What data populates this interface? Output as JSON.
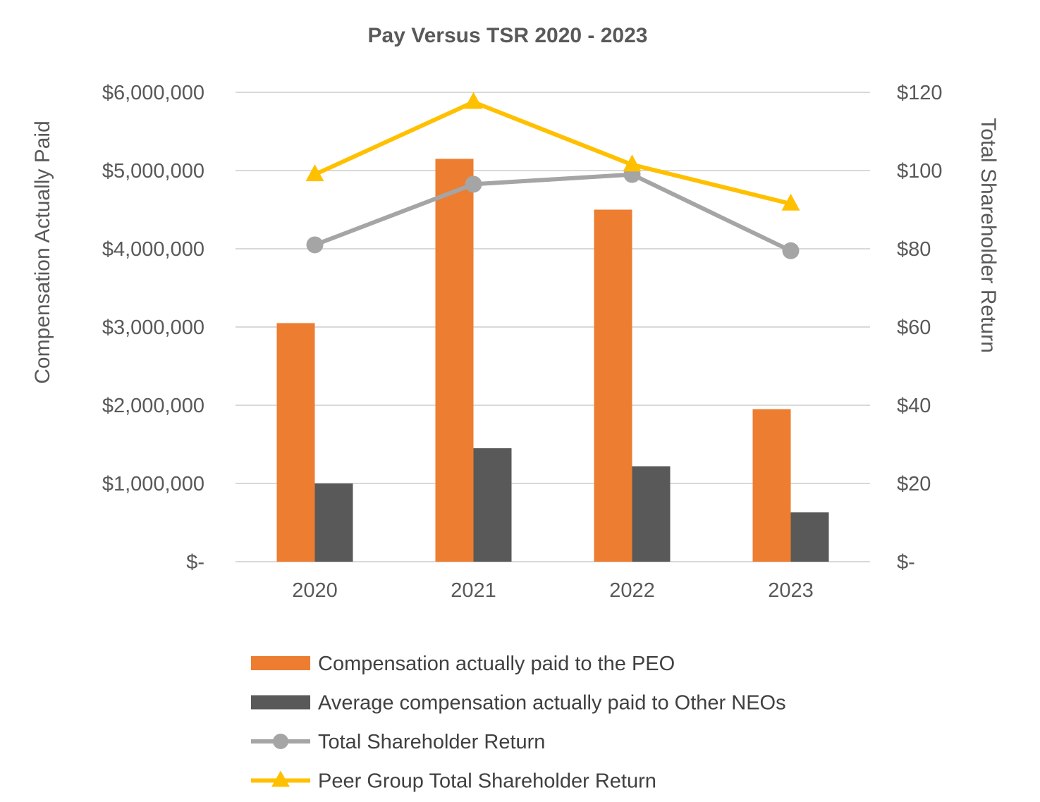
{
  "chart_data": {
    "type": "bar",
    "title": "Pay Versus TSR 2020 - 2023",
    "categories": [
      "2020",
      "2021",
      "2022",
      "2023"
    ],
    "ylabel": "Compensation Actually Paid",
    "y2label": "Total Shareholder Return",
    "ylim": [
      0,
      6000000
    ],
    "y2lim": [
      0,
      120
    ],
    "yticks": [
      0,
      1000000,
      2000000,
      3000000,
      4000000,
      5000000,
      6000000
    ],
    "ytick_labels": [
      "$-",
      "$1,000,000",
      "$2,000,000",
      "$3,000,000",
      "$4,000,000",
      "$5,000,000",
      "$6,000,000"
    ],
    "y2ticks": [
      0,
      20,
      40,
      60,
      80,
      100,
      120
    ],
    "y2tick_labels": [
      "$-",
      "$20",
      "$40",
      "$60",
      "$80",
      "$100",
      "$120"
    ],
    "grid": true,
    "legend_position": "bottom",
    "series": [
      {
        "name": "Compensation actually paid to the PEO",
        "type": "bar",
        "axis": "left",
        "color": "#ED7D31",
        "values": [
          3050000,
          5150000,
          4500000,
          1950000
        ]
      },
      {
        "name": "Average compensation actually paid to Other NEOs",
        "type": "bar",
        "axis": "left",
        "color": "#595959",
        "values": [
          1000000,
          1450000,
          1220000,
          630000
        ]
      },
      {
        "name": "Total Shareholder Return",
        "type": "line",
        "axis": "right",
        "marker": "circle",
        "color": "#A5A5A5",
        "values": [
          81,
          96.5,
          99,
          79.5
        ]
      },
      {
        "name": "Peer Group Total Shareholder Return",
        "type": "line",
        "axis": "right",
        "marker": "triangle",
        "color": "#FFC000",
        "values": [
          99,
          117.5,
          101.5,
          91.5
        ]
      }
    ]
  }
}
